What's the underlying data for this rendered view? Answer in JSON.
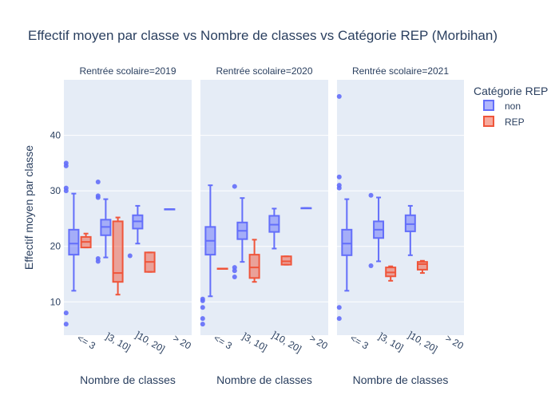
{
  "chart_data": {
    "type": "box",
    "title": "Effectif moyen par classe vs Nombre de classes vs Catégorie REP (Morbihan)",
    "ylabel": "Effectif moyen par classe",
    "xlabel": "Nombre de classes",
    "categories": [
      "<= 3",
      "]3, 10]",
      "]10, 20]",
      "> 20"
    ],
    "ylim": [
      4,
      50
    ],
    "yticks": [
      10,
      20,
      30,
      40
    ],
    "grid": true,
    "legend": {
      "title": "Catégorie REP",
      "position": "top-right",
      "items": [
        {
          "label": "non",
          "color": "#636efa"
        },
        {
          "label": "REP",
          "color": "#ef553b"
        }
      ]
    },
    "facets": [
      {
        "label": "Rentrée scolaire=2019",
        "series": [
          {
            "name": "non",
            "boxes": [
              {
                "category": "<= 3",
                "whisker_low": 12,
                "q1": 18.5,
                "median": 20.5,
                "q3": 23,
                "whisker_high": 29.5,
                "outliers": [
                  6,
                  8,
                  30,
                  30.5,
                  34.5,
                  35
                ]
              },
              {
                "category": "]3, 10]",
                "whisker_low": 18,
                "q1": 22,
                "median": 23.5,
                "q3": 24.8,
                "whisker_high": 28.5,
                "outliers": [
                  17.3,
                  17.8,
                  28.8,
                  29.1,
                  31.6
                ]
              },
              {
                "category": "]10, 20]",
                "whisker_low": 20.5,
                "q1": 23.2,
                "median": 24.5,
                "q3": 25.6,
                "whisker_high": 27.3,
                "outliers": [
                  18.3
                ]
              },
              {
                "category": "> 20",
                "whisker_low": 26.7,
                "q1": 26.7,
                "median": 26.7,
                "q3": 26.7,
                "whisker_high": 26.7,
                "outliers": []
              }
            ]
          },
          {
            "name": "REP",
            "boxes": [
              {
                "category": "<= 3",
                "whisker_low": 19.8,
                "q1": 19.8,
                "median": 20.8,
                "q3": 21.7,
                "whisker_high": 22.3,
                "outliers": []
              },
              {
                "category": "]3, 10]",
                "whisker_low": 11.3,
                "q1": 13.6,
                "median": 15.2,
                "q3": 24.5,
                "whisker_high": 25.2,
                "outliers": []
              },
              {
                "category": "]10, 20]",
                "whisker_low": 15.4,
                "q1": 15.4,
                "median": 17.2,
                "q3": 18.9,
                "whisker_high": 18.9,
                "outliers": []
              }
            ]
          }
        ]
      },
      {
        "label": "Rentrée scolaire=2020",
        "series": [
          {
            "name": "non",
            "boxes": [
              {
                "category": "<= 3",
                "whisker_low": 11,
                "q1": 18.5,
                "median": 21,
                "q3": 23.5,
                "whisker_high": 31,
                "outliers": [
                  6,
                  7,
                  9,
                  10.2,
                  10.5
                ]
              },
              {
                "category": "]3, 10]",
                "whisker_low": 17.2,
                "q1": 21.3,
                "median": 22.8,
                "q3": 24.3,
                "whisker_high": 28.7,
                "outliers": [
                  14.5,
                  15.6,
                  16.2,
                  30.8
                ]
              },
              {
                "category": "]10, 20]",
                "whisker_low": 19.6,
                "q1": 22.6,
                "median": 23.9,
                "q3": 25.5,
                "whisker_high": 26.8,
                "outliers": []
              },
              {
                "category": "> 20",
                "whisker_low": 26.9,
                "q1": 26.9,
                "median": 26.9,
                "q3": 26.9,
                "whisker_high": 26.9,
                "outliers": []
              }
            ]
          },
          {
            "name": "REP",
            "boxes": [
              {
                "category": "<= 3",
                "whisker_low": 16,
                "q1": 16,
                "median": 16,
                "q3": 16,
                "whisker_high": 16,
                "outliers": []
              },
              {
                "category": "]3, 10]",
                "whisker_low": 13.6,
                "q1": 14.3,
                "median": 16.2,
                "q3": 18.5,
                "whisker_high": 21.2,
                "outliers": []
              },
              {
                "category": "]10, 20]",
                "whisker_low": 16.7,
                "q1": 16.7,
                "median": 17.3,
                "q3": 18.2,
                "whisker_high": 18.2,
                "outliers": []
              }
            ]
          }
        ]
      },
      {
        "label": "Rentrée scolaire=2021",
        "series": [
          {
            "name": "non",
            "boxes": [
              {
                "category": "<= 3",
                "whisker_low": 12,
                "q1": 18.4,
                "median": 20.5,
                "q3": 23,
                "whisker_high": 28.5,
                "outliers": [
                  7,
                  9,
                  30.5,
                  31,
                  32.5,
                  47
                ]
              },
              {
                "category": "]3, 10]",
                "whisker_low": 17.3,
                "q1": 21.5,
                "median": 23,
                "q3": 24.5,
                "whisker_high": 28.8,
                "outliers": [
                  16.5,
                  29.2
                ]
              },
              {
                "category": "]10, 20]",
                "whisker_low": 18.4,
                "q1": 22.7,
                "median": 24,
                "q3": 25.6,
                "whisker_high": 27.3,
                "outliers": []
              }
            ]
          },
          {
            "name": "REP",
            "boxes": [
              {
                "category": "]3, 10]",
                "whisker_low": 13.8,
                "q1": 14.6,
                "median": 15.3,
                "q3": 16.2,
                "whisker_high": 16.4,
                "outliers": []
              },
              {
                "category": "]10, 20]",
                "whisker_low": 15.2,
                "q1": 15.8,
                "median": 16.8,
                "q3": 17.2,
                "whisker_high": 17.4,
                "outliers": []
              }
            ]
          }
        ]
      }
    ]
  }
}
